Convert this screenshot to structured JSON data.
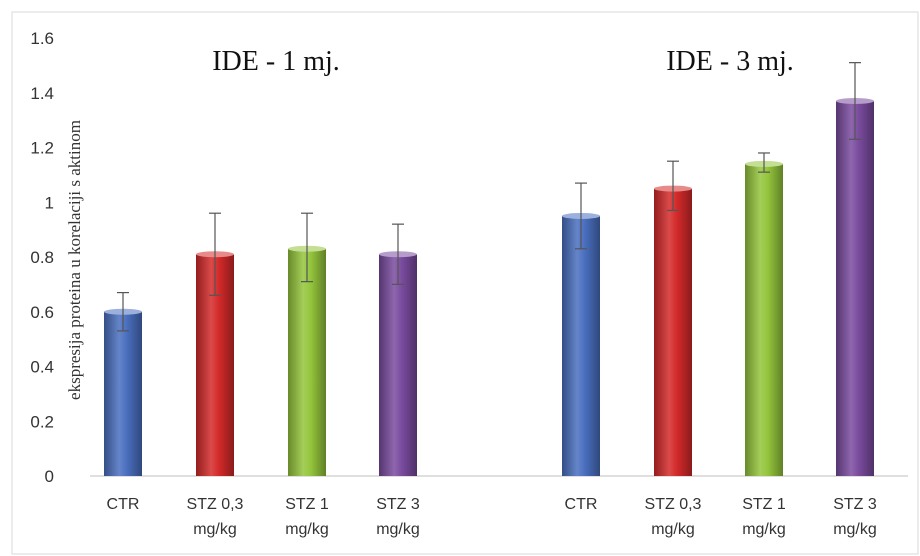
{
  "chart_data": {
    "type": "bar",
    "ylabel": "ekspresija proteina u korelaciji s aktinom",
    "ylim": [
      0,
      1.6
    ],
    "yticks": [
      "0",
      "0.2",
      "0.4",
      "0.6",
      "0.8",
      "1",
      "1.2",
      "1.4",
      "1.6"
    ],
    "grid": false,
    "groups": [
      {
        "title": "IDE - 1 mj.",
        "bars": [
          {
            "label": [
              "CTR"
            ],
            "value": 0.6,
            "err_low": 0.53,
            "err_high": 0.67,
            "color": "#4a6fbf"
          },
          {
            "label": [
              "STZ 0,3",
              "mg/kg"
            ],
            "value": 0.81,
            "err_low": 0.66,
            "err_high": 0.96,
            "color": "#d42a2a"
          },
          {
            "label": [
              "STZ 1",
              "mg/kg"
            ],
            "value": 0.83,
            "err_low": 0.71,
            "err_high": 0.96,
            "color": "#94c53c"
          },
          {
            "label": [
              "STZ 3",
              "mg/kg"
            ],
            "value": 0.81,
            "err_low": 0.7,
            "err_high": 0.92,
            "color": "#7a4b9e"
          }
        ]
      },
      {
        "title": "IDE - 3 mj.",
        "bars": [
          {
            "label": [
              "CTR"
            ],
            "value": 0.95,
            "err_low": 0.83,
            "err_high": 1.07,
            "color": "#4a6fbf"
          },
          {
            "label": [
              "STZ 0,3",
              "mg/kg"
            ],
            "value": 1.05,
            "err_low": 0.97,
            "err_high": 1.15,
            "color": "#d42a2a"
          },
          {
            "label": [
              "STZ 1",
              "mg/kg"
            ],
            "value": 1.14,
            "err_low": 1.11,
            "err_high": 1.18,
            "color": "#94c53c"
          },
          {
            "label": [
              "STZ 3",
              "mg/kg"
            ],
            "value": 1.37,
            "err_low": 1.23,
            "err_high": 1.51,
            "color": "#7a4b9e"
          }
        ]
      }
    ]
  }
}
